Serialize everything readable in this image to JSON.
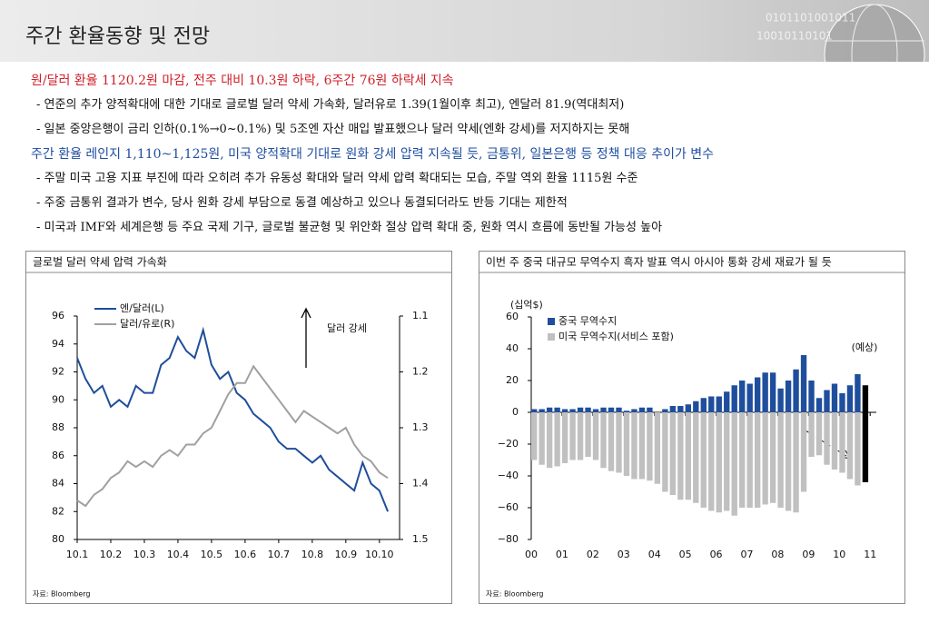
{
  "header": {
    "title": "주간 환율동향 및 전망"
  },
  "sections": [
    {
      "heading": "원/달러 환율 1120.2원 마감, 전주 대비 10.3원 하락, 6주간 76원 하락세 지속",
      "color": "#d0202a",
      "bullets": [
        "- 연준의 추가 양적확대에 대한 기대로 글로벌 달러 약세 가속화, 달러유로 1.39(1월이후 최고), 엔달러 81.9(역대최저)",
        "- 일본 중앙은행이 금리 인하(0.1%→0~0.1%) 및 5조엔 자산 매입 발표했으나 달러 약세(엔화 강세)를 저지하지는 못해"
      ]
    },
    {
      "heading": "주간 환율 레인지 1,110~1,125원, 미국 양적확대 기대로 원화 강세 압력 지속될 듯, 금통위, 일본은행 등 정책 대응 추이가 변수",
      "color": "#1f4ea0",
      "bullets": [
        "- 주말 미국 고용 지표 부진에 따라 오히려 추가 유동성 확대와 달러 약세 압력 확대되는 모습, 주말 역외 환율 1115원 수준",
        "- 주중 금통위 결과가 변수, 당사 원화 강세 부담으로 동결 예상하고 있으나 동결되더라도 반등 기대는 제한적",
        "- 미국과 IMF와 세계은행 등 주요 국제 기구, 글로벌 불균형 및 위안화 절상 압력 확대 중, 원화 역시 흐름에 동반될 가능성 높아"
      ]
    }
  ],
  "chart_data": [
    {
      "type": "line",
      "title": "글로벌 달러 약세 압력 가속화",
      "source": "자료: Bloomberg",
      "annotation": "달러 강세",
      "legend": "upper left",
      "xlim": [
        0,
        9.6
      ],
      "xticks": [
        {
          "value": 0,
          "label": "10.1"
        },
        {
          "value": 1,
          "label": "10.2"
        },
        {
          "value": 2,
          "label": "10.3"
        },
        {
          "value": 3,
          "label": "10.4"
        },
        {
          "value": 4,
          "label": "10.5"
        },
        {
          "value": 5,
          "label": "10.6"
        },
        {
          "value": 6,
          "label": "10.7"
        },
        {
          "value": 7,
          "label": "10.8"
        },
        {
          "value": 8,
          "label": "10.9"
        },
        {
          "value": 9,
          "label": "10.10"
        }
      ],
      "ylim": [
        80,
        96
      ],
      "yticks": [
        80,
        82,
        84,
        86,
        88,
        90,
        92,
        94,
        96
      ],
      "y2lim": [
        1.5,
        1.1
      ],
      "y2ticks": [
        1.1,
        1.2,
        1.3,
        1.4,
        1.5
      ],
      "x": [
        0,
        0.25,
        0.5,
        0.75,
        1,
        1.25,
        1.5,
        1.75,
        2,
        2.25,
        2.5,
        2.75,
        3,
        3.25,
        3.5,
        3.75,
        4,
        4.25,
        4.5,
        4.75,
        5,
        5.25,
        5.5,
        5.75,
        6,
        6.25,
        6.5,
        6.75,
        7,
        7.25,
        7.5,
        7.75,
        8,
        8.25,
        8.5,
        8.75,
        9,
        9.25
      ],
      "series": [
        {
          "name": "엔/달러(L)",
          "color": "#1f4e9c",
          "values": [
            93,
            91.5,
            90.5,
            91,
            89.5,
            90,
            89.5,
            91,
            90.5,
            90.5,
            92.5,
            93,
            94.5,
            93.5,
            93,
            95,
            92.5,
            91.5,
            92,
            90.5,
            90,
            89,
            88.5,
            88,
            87,
            86.5,
            86.5,
            86,
            85.5,
            86,
            85,
            84.5,
            84,
            83.5,
            85.5,
            84,
            83.5,
            82
          ]
        },
        {
          "name": "달러/유로(R)",
          "color": "#a0a0a0",
          "axis": "y2",
          "values": [
            1.43,
            1.44,
            1.42,
            1.41,
            1.39,
            1.38,
            1.36,
            1.37,
            1.36,
            1.37,
            1.35,
            1.34,
            1.35,
            1.33,
            1.33,
            1.31,
            1.3,
            1.27,
            1.24,
            1.22,
            1.22,
            1.19,
            1.21,
            1.23,
            1.25,
            1.27,
            1.29,
            1.27,
            1.28,
            1.29,
            1.3,
            1.31,
            1.3,
            1.33,
            1.35,
            1.36,
            1.38,
            1.39
          ]
        }
      ]
    },
    {
      "type": "bar",
      "title": "이번 주 중국 대규모 무역수지 흑자 발표 역시 아시아 통화 강세 재료가 될 듯",
      "source": "자료: Bloomberg",
      "unit": "(십억$)",
      "annotation": "(예상)",
      "xlim": [
        2000,
        2011.2
      ],
      "xticks": [
        {
          "value": 2000,
          "label": "00"
        },
        {
          "value": 2001,
          "label": "01"
        },
        {
          "value": 2002,
          "label": "02"
        },
        {
          "value": 2003,
          "label": "03"
        },
        {
          "value": 2004,
          "label": "04"
        },
        {
          "value": 2005,
          "label": "05"
        },
        {
          "value": 2006,
          "label": "06"
        },
        {
          "value": 2007,
          "label": "07"
        },
        {
          "value": 2008,
          "label": "08"
        },
        {
          "value": 2009,
          "label": "09"
        },
        {
          "value": 2010,
          "label": "10"
        },
        {
          "value": 2011,
          "label": "11"
        }
      ],
      "ylim": [
        -80,
        60
      ],
      "yticks": [
        {
          "value": -80,
          "label": "−80"
        },
        {
          "value": -60,
          "label": "−60"
        },
        {
          "value": -40,
          "label": "−40"
        },
        {
          "value": -20,
          "label": "−20"
        },
        0,
        20,
        40,
        60
      ],
      "forecast_index": 43,
      "forecast_color": "#000000",
      "x": [
        2000,
        2000.25,
        2000.5,
        2000.75,
        2001,
        2001.25,
        2001.5,
        2001.75,
        2002,
        2002.25,
        2002.5,
        2002.75,
        2003,
        2003.25,
        2003.5,
        2003.75,
        2004,
        2004.25,
        2004.5,
        2004.75,
        2005,
        2005.25,
        2005.5,
        2005.75,
        2006,
        2006.25,
        2006.5,
        2006.75,
        2007,
        2007.25,
        2007.5,
        2007.75,
        2008,
        2008.25,
        2008.5,
        2008.75,
        2009,
        2009.25,
        2009.5,
        2009.75,
        2010,
        2010.25,
        2010.5,
        2010.75
      ],
      "series": [
        {
          "name": "중국 무역수지",
          "color": "#1f4e9c",
          "values": [
            2,
            2,
            3,
            3,
            2,
            2,
            3,
            3,
            2,
            3,
            3,
            3,
            1,
            2,
            3,
            3,
            0,
            2,
            4,
            4,
            5,
            7,
            9,
            10,
            10,
            13,
            17,
            20,
            18,
            22,
            25,
            25,
            15,
            20,
            27,
            36,
            20,
            9,
            14,
            18,
            12,
            17,
            24,
            17
          ]
        },
        {
          "name": "미국 무역수지(서비스 포함)",
          "color": "#c0c0c0",
          "values": [
            -30,
            -33,
            -35,
            -34,
            -32,
            -30,
            -30,
            -28,
            -30,
            -35,
            -37,
            -38,
            -40,
            -42,
            -42,
            -43,
            -45,
            -50,
            -52,
            -55,
            -55,
            -57,
            -60,
            -62,
            -63,
            -62,
            -65,
            -60,
            -60,
            -60,
            -58,
            -57,
            -60,
            -62,
            -63,
            -50,
            -28,
            -27,
            -33,
            -36,
            -38,
            -42,
            -46,
            -44
          ]
        }
      ]
    }
  ]
}
